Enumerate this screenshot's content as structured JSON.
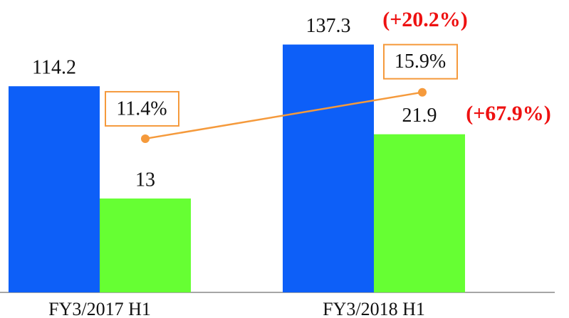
{
  "chart_data": {
    "type": "bar",
    "categories": [
      "FY3/2017 H1",
      "FY3/2018 H1"
    ],
    "series": [
      {
        "name": null,
        "color": "#0d5ff8",
        "values": [
          114.2,
          137.3
        ]
      },
      {
        "name": null,
        "color": "#66ff33",
        "values": [
          13.0,
          21.9
        ],
        "axis": "y2"
      },
      {
        "name": null,
        "type": "line",
        "color": "#f59a3c",
        "values": [
          11.4,
          15.9
        ],
        "value_labels": [
          "11.4%",
          "15.9%"
        ],
        "axis": "y3"
      }
    ],
    "ylim": [
      0,
      160
    ],
    "y2lim": [
      0,
      40
    ],
    "y3lim": [
      -3.5,
      24.5
    ],
    "annotations": [
      "(+20.2%)",
      "(+67.9%)"
    ],
    "annotation_color": "#ee1111"
  }
}
